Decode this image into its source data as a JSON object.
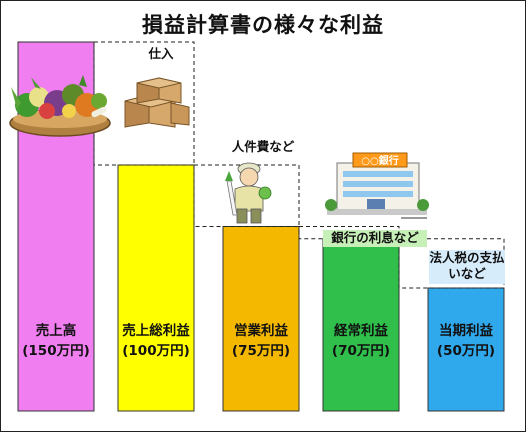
{
  "chart_data": {
    "type": "bar",
    "title": "損益計算書の様々な利益",
    "xlabel": "",
    "ylabel": "",
    "ylim": [
      0,
      150
    ],
    "unit": "万円",
    "categories": [
      "売上高",
      "売上総利益",
      "営業利益",
      "経常利益",
      "当期利益"
    ],
    "value_labels": [
      "(150万円)",
      "(100万円)",
      "(75万円)",
      "(70万円)",
      "(50万円)"
    ],
    "values": [
      150,
      100,
      75,
      70,
      50
    ],
    "colors": [
      "#f07ef0",
      "#ffff00",
      "#f5b800",
      "#2fbf4a",
      "#30a8ec"
    ],
    "deductions": [
      {
        "label": "仕入",
        "value": 50
      },
      {
        "label": "人件費など",
        "value": 25
      },
      {
        "label": "銀行の利息など",
        "value": 5
      },
      {
        "label": "法人税の支払いなど",
        "value": 20
      }
    ],
    "grid": false,
    "legend": "none"
  },
  "illustrations": {
    "vegetables": "vegetable-basket-icon",
    "boxes": "cardboard-boxes-icon",
    "worker": "worker-holding-radish-icon",
    "bank": "bank-building-icon",
    "bank_sign": "○○銀行"
  }
}
